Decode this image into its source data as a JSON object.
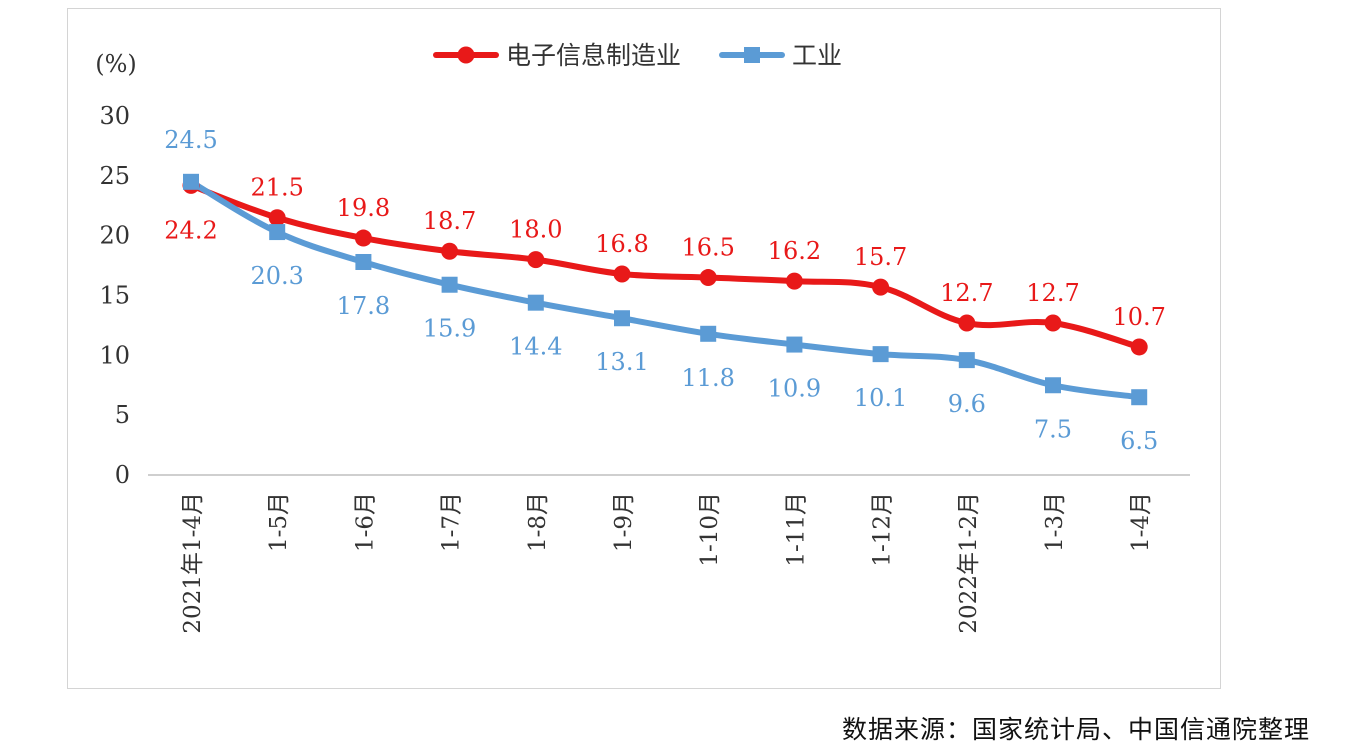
{
  "chart_data": {
    "type": "line",
    "unit_label": "(%)",
    "categories": [
      "2021年1-4月",
      "1-5月",
      "1-6月",
      "1-7月",
      "1-8月",
      "1-9月",
      "1-10月",
      "1-11月",
      "1-12月",
      "2022年1-2月",
      "1-3月",
      "1-4月"
    ],
    "series": [
      {
        "name": "电子信息制造业",
        "color": "#e81919",
        "marker": "circle",
        "values": [
          24.2,
          21.5,
          19.8,
          18.7,
          18.0,
          16.8,
          16.5,
          16.2,
          15.7,
          12.7,
          12.7,
          10.7
        ]
      },
      {
        "name": "工业",
        "color": "#5b9bd5",
        "marker": "square",
        "values": [
          24.5,
          20.3,
          17.8,
          15.9,
          14.4,
          13.1,
          11.8,
          10.9,
          10.1,
          9.6,
          7.5,
          6.5
        ]
      }
    ],
    "yticks": [
      "0",
      "5",
      "10",
      "15",
      "20",
      "25",
      "30"
    ],
    "ylim": [
      0,
      30
    ],
    "legend": "top-center",
    "grid": false
  },
  "source_note": "数据来源：国家统计局、中国信通院整理"
}
